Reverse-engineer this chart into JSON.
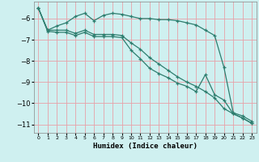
{
  "xlabel": "Humidex (Indice chaleur)",
  "bg_color": "#cff0f0",
  "grid_color": "#e8a0a8",
  "line_color": "#2d7d6e",
  "xlim": [
    -0.5,
    23.5
  ],
  "ylim": [
    -11.4,
    -5.2
  ],
  "yticks": [
    -11,
    -10,
    -9,
    -8,
    -7,
    -6
  ],
  "xticks": [
    0,
    1,
    2,
    3,
    4,
    5,
    6,
    7,
    8,
    9,
    10,
    11,
    12,
    13,
    14,
    15,
    16,
    17,
    18,
    19,
    20,
    21,
    22,
    23
  ],
  "line1_x": [
    0,
    1,
    2,
    3,
    4,
    5,
    6,
    7,
    8,
    9,
    10,
    11,
    12,
    13,
    14,
    15,
    16,
    17,
    18,
    19,
    20,
    21,
    22,
    23
  ],
  "line1_y": [
    -5.5,
    -6.55,
    -6.35,
    -6.2,
    -5.9,
    -5.75,
    -6.1,
    -5.85,
    -5.75,
    -5.8,
    -5.9,
    -6.0,
    -6.0,
    -6.05,
    -6.05,
    -6.1,
    -6.2,
    -6.3,
    -6.55,
    -6.8,
    -8.3,
    -10.45,
    -10.6,
    -10.85
  ],
  "line2_x": [
    0,
    1,
    2,
    3,
    4,
    5,
    6,
    7,
    8,
    9,
    10,
    11,
    12,
    13,
    14,
    15,
    16,
    17,
    18,
    19,
    20,
    21,
    22,
    23
  ],
  "line2_y": [
    -5.5,
    -6.55,
    -6.55,
    -6.55,
    -6.7,
    -6.55,
    -6.75,
    -6.75,
    -6.75,
    -6.8,
    -7.15,
    -7.45,
    -7.85,
    -8.15,
    -8.45,
    -8.75,
    -9.0,
    -9.2,
    -9.45,
    -9.75,
    -10.25,
    -10.5,
    -10.7,
    -10.95
  ],
  "line3_x": [
    0,
    1,
    2,
    3,
    4,
    5,
    6,
    7,
    8,
    9,
    10,
    11,
    12,
    13,
    14,
    15,
    16,
    17,
    18,
    19,
    20,
    21,
    22,
    23
  ],
  "line3_y": [
    -5.5,
    -6.6,
    -6.65,
    -6.65,
    -6.8,
    -6.65,
    -6.85,
    -6.85,
    -6.85,
    -6.9,
    -7.5,
    -7.9,
    -8.35,
    -8.6,
    -8.8,
    -9.05,
    -9.2,
    -9.45,
    -8.65,
    -9.6,
    -9.85,
    -10.5,
    -10.7,
    -10.95
  ]
}
